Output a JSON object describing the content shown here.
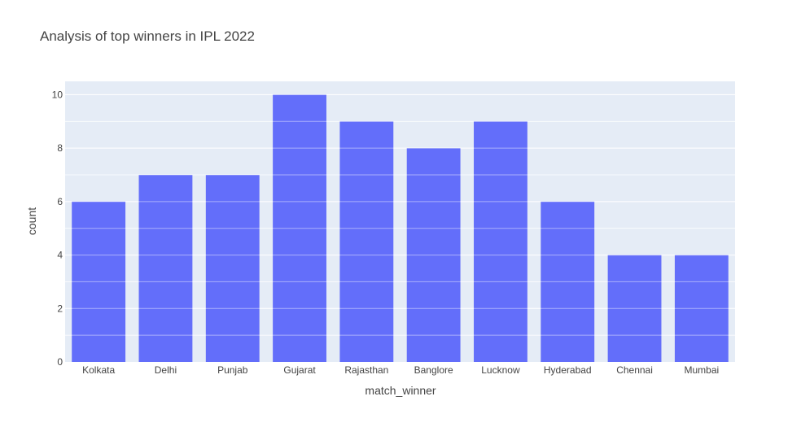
{
  "chart_data": {
    "type": "bar",
    "title": "Analysis of top winners in IPL 2022",
    "xlabel": "match_winner",
    "ylabel": "count",
    "categories": [
      "Kolkata",
      "Delhi",
      "Punjab",
      "Gujarat",
      "Rajasthan",
      "Banglore",
      "Lucknow",
      "Hyderabad",
      "Chennai",
      "Mumbai"
    ],
    "values": [
      6,
      7,
      7,
      10,
      9,
      8,
      9,
      6,
      4,
      4
    ],
    "ylim": [
      0,
      10.5
    ],
    "yticks": [
      0,
      2,
      4,
      6,
      8,
      10
    ],
    "grid": true,
    "colors": {
      "bar": "#636efa",
      "plot_bg": "#e5ecf6",
      "grid": "#ffffff",
      "text": "#444444"
    }
  }
}
